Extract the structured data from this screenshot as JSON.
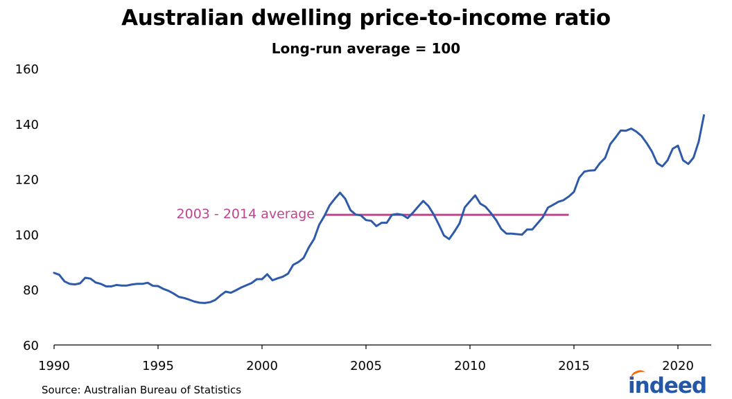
{
  "colors": {
    "series": "#2e5aa8",
    "reference": "#c0448f",
    "axis": "#000000",
    "brand_blue": "#2557a7",
    "brand_orange": "#ff6600"
  },
  "footer": {
    "source": "Source: Australian Bureau of Statistics",
    "logo_text": "indeed"
  },
  "chart_data": {
    "type": "line",
    "title": "Australian dwelling price-to-income ratio",
    "subtitle": "Long-run average = 100",
    "xlabel": "",
    "ylabel": "",
    "xlim": [
      1990,
      2021.5
    ],
    "ylim": [
      60,
      160
    ],
    "x_ticks": [
      "1990",
      "1995",
      "2000",
      "2005",
      "2010",
      "2015",
      "2020"
    ],
    "y_ticks": [
      "60",
      "80",
      "100",
      "120",
      "140",
      "160"
    ],
    "grid": false,
    "legend": "none",
    "series": [
      {
        "name": "",
        "x": [
          1990.0,
          1990.25,
          1990.5,
          1990.75,
          1991.0,
          1991.25,
          1991.5,
          1991.75,
          1992.0,
          1992.25,
          1992.5,
          1992.75,
          1993.0,
          1993.25,
          1993.5,
          1993.75,
          1994.0,
          1994.25,
          1994.5,
          1994.75,
          1995.0,
          1995.25,
          1995.5,
          1995.75,
          1996.0,
          1996.25,
          1996.5,
          1996.75,
          1997.0,
          1997.25,
          1997.5,
          1997.75,
          1998.0,
          1998.25,
          1998.5,
          1998.75,
          1999.0,
          1999.25,
          1999.5,
          1999.75,
          2000.0,
          2000.25,
          2000.5,
          2000.75,
          2001.0,
          2001.25,
          2001.5,
          2001.75,
          2002.0,
          2002.25,
          2002.5,
          2002.75,
          2003.0,
          2003.25,
          2003.5,
          2003.75,
          2004.0,
          2004.25,
          2004.5,
          2004.75,
          2005.0,
          2005.25,
          2005.5,
          2005.75,
          2006.0,
          2006.25,
          2006.5,
          2006.75,
          2007.0,
          2007.25,
          2007.5,
          2007.75,
          2008.0,
          2008.25,
          2008.5,
          2008.75,
          2009.0,
          2009.25,
          2009.5,
          2009.75,
          2010.0,
          2010.25,
          2010.5,
          2010.75,
          2011.0,
          2011.25,
          2011.5,
          2011.75,
          2012.0,
          2012.25,
          2012.5,
          2012.75,
          2013.0,
          2013.25,
          2013.5,
          2013.75,
          2014.0,
          2014.25,
          2014.5,
          2014.75,
          2015.0,
          2015.25,
          2015.5,
          2015.75,
          2016.0,
          2016.25,
          2016.5,
          2016.75,
          2017.0,
          2017.25,
          2017.5,
          2017.75,
          2018.0,
          2018.25,
          2018.5,
          2018.75,
          2019.0,
          2019.25,
          2019.5,
          2019.75,
          2020.0,
          2020.25,
          2020.5,
          2020.75,
          2021.0,
          2021.25
        ],
        "values": [
          86.1,
          85.4,
          83.0,
          82.1,
          81.9,
          82.3,
          84.3,
          84.0,
          82.6,
          82.1,
          81.2,
          81.2,
          81.7,
          81.5,
          81.5,
          81.9,
          82.1,
          82.1,
          82.5,
          81.4,
          81.3,
          80.3,
          79.6,
          78.6,
          77.4,
          77.0,
          76.4,
          75.7,
          75.3,
          75.2,
          75.5,
          76.3,
          77.9,
          79.3,
          78.9,
          79.8,
          80.8,
          81.6,
          82.4,
          83.8,
          83.8,
          85.6,
          83.4,
          84.1,
          84.7,
          85.8,
          89.0,
          90.0,
          91.5,
          95.3,
          98.3,
          103.5,
          106.7,
          110.5,
          112.9,
          115.1,
          112.9,
          108.8,
          107.2,
          106.9,
          105.2,
          104.9,
          103.0,
          104.2,
          104.2,
          107.1,
          107.4,
          107.1,
          105.9,
          107.8,
          110.0,
          112.1,
          110.3,
          107.3,
          103.6,
          99.6,
          98.3,
          101.0,
          104.0,
          109.8,
          112.0,
          114.1,
          111.1,
          110.0,
          107.8,
          105.3,
          102.0,
          100.3,
          100.3,
          100.1,
          99.9,
          101.8,
          101.8,
          104.0,
          106.2,
          109.7,
          110.7,
          111.8,
          112.4,
          113.7,
          115.4,
          120.5,
          122.7,
          123.1,
          123.2,
          125.8,
          127.7,
          132.7,
          135.1,
          137.6,
          137.5,
          138.3,
          137.2,
          135.6,
          133.0,
          130.0,
          125.8,
          124.6,
          126.8,
          131.0,
          132.1,
          126.8,
          125.5,
          127.8,
          133.6,
          143.1
        ]
      }
    ],
    "reference_lines": [
      {
        "label": "2003 - 2014 average",
        "x_start": 2003.0,
        "x_end": 2014.75,
        "value": 107.1
      }
    ]
  }
}
